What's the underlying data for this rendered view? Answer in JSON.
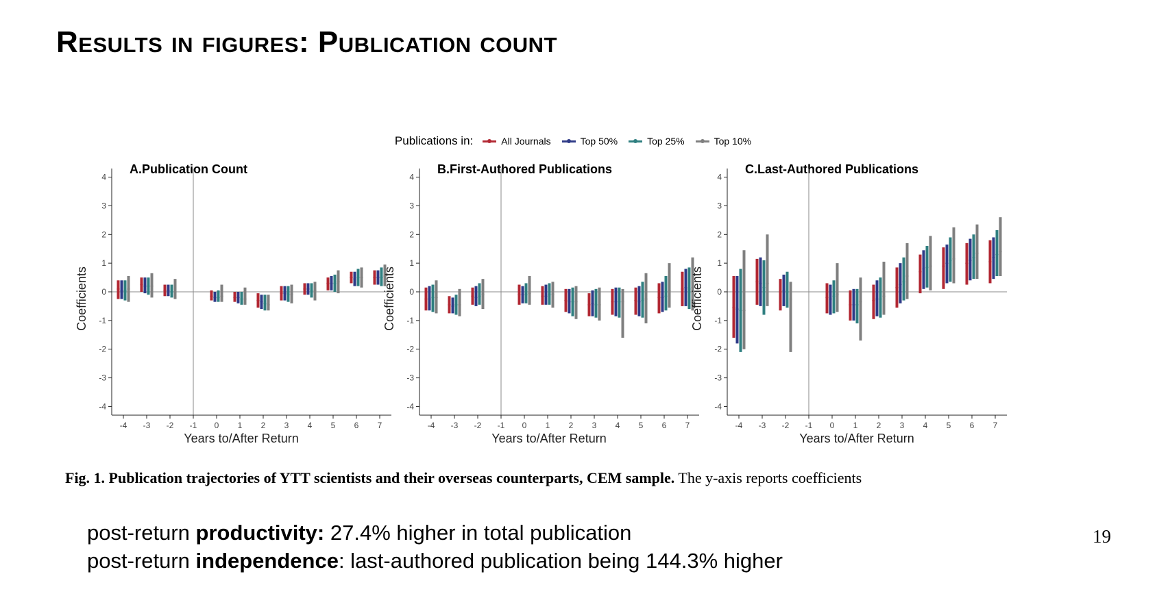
{
  "slide": {
    "title": "Results in figures: Publication count",
    "page_number": "19"
  },
  "legend": {
    "title": "Publications in:",
    "items": [
      {
        "label": "All Journals",
        "color": "#b22833"
      },
      {
        "label": "Top 50%",
        "color": "#2e3a87"
      },
      {
        "label": "Top 25%",
        "color": "#2f7f80"
      },
      {
        "label": "Top 10%",
        "color": "#7f7f7f"
      }
    ]
  },
  "chart_data": [
    {
      "type": "scatter",
      "style": "coefficient plot with confidence interval bars",
      "title": "A.Publication Count",
      "xlabel": "Years to/After Return",
      "ylabel": "Coefficients",
      "x": [
        -4,
        -3,
        -2,
        -1,
        0,
        1,
        2,
        3,
        4,
        5,
        6,
        7
      ],
      "xlim": [
        -4.5,
        7.5
      ],
      "ylim": [
        -4.3,
        4.3
      ],
      "yticks": [
        -4,
        -3,
        -2,
        -1,
        0,
        1,
        2,
        3,
        4
      ],
      "reference_lines": {
        "x": -1,
        "y": 0
      },
      "grid": false,
      "series": [
        {
          "name": "All Journals",
          "color": "#b22833",
          "points": [
            [
              -4,
              0.1,
              -0.25,
              0.4
            ],
            [
              -3,
              0.25,
              0.0,
              0.5
            ],
            [
              -2,
              0.05,
              -0.15,
              0.25
            ],
            [
              0,
              -0.15,
              -0.3,
              0.05
            ],
            [
              1,
              -0.2,
              -0.35,
              0.0
            ],
            [
              2,
              -0.3,
              -0.55,
              -0.05
            ],
            [
              3,
              -0.05,
              -0.3,
              0.2
            ],
            [
              4,
              0.1,
              -0.1,
              0.3
            ],
            [
              5,
              0.3,
              0.05,
              0.5
            ],
            [
              6,
              0.5,
              0.3,
              0.7
            ],
            [
              7,
              0.5,
              0.25,
              0.75
            ]
          ]
        },
        {
          "name": "Top 50%",
          "color": "#2e3a87",
          "points": [
            [
              -4,
              0.05,
              -0.25,
              0.4
            ],
            [
              -3,
              0.2,
              -0.05,
              0.5
            ],
            [
              -2,
              0.05,
              -0.15,
              0.25
            ],
            [
              0,
              -0.2,
              -0.35,
              0.0
            ],
            [
              1,
              -0.2,
              -0.4,
              0.0
            ],
            [
              2,
              -0.35,
              -0.6,
              -0.1
            ],
            [
              3,
              -0.05,
              -0.3,
              0.2
            ],
            [
              4,
              0.1,
              -0.1,
              0.3
            ],
            [
              5,
              0.3,
              0.05,
              0.55
            ],
            [
              6,
              0.45,
              0.2,
              0.7
            ],
            [
              7,
              0.5,
              0.25,
              0.75
            ]
          ]
        },
        {
          "name": "Top 25%",
          "color": "#2f7f80",
          "points": [
            [
              -4,
              0.05,
              -0.3,
              0.4
            ],
            [
              -3,
              0.2,
              -0.1,
              0.5
            ],
            [
              -2,
              0.0,
              -0.2,
              0.25
            ],
            [
              0,
              -0.2,
              -0.35,
              0.05
            ],
            [
              1,
              -0.25,
              -0.45,
              0.0
            ],
            [
              2,
              -0.4,
              -0.65,
              -0.1
            ],
            [
              3,
              -0.1,
              -0.35,
              0.2
            ],
            [
              4,
              0.05,
              -0.2,
              0.3
            ],
            [
              5,
              0.3,
              0.0,
              0.6
            ],
            [
              6,
              0.5,
              0.2,
              0.8
            ],
            [
              7,
              0.5,
              0.2,
              0.85
            ]
          ]
        },
        {
          "name": "Top 10%",
          "color": "#7f7f7f",
          "points": [
            [
              -4,
              0.1,
              -0.35,
              0.55
            ],
            [
              -3,
              0.2,
              -0.2,
              0.65
            ],
            [
              -2,
              0.0,
              -0.25,
              0.45
            ],
            [
              0,
              -0.15,
              -0.35,
              0.25
            ],
            [
              1,
              -0.25,
              -0.45,
              0.15
            ],
            [
              2,
              -0.45,
              -0.65,
              -0.1
            ],
            [
              3,
              -0.1,
              -0.4,
              0.25
            ],
            [
              4,
              0.05,
              -0.3,
              0.35
            ],
            [
              5,
              0.35,
              -0.05,
              0.75
            ],
            [
              6,
              0.5,
              0.15,
              0.85
            ],
            [
              7,
              0.55,
              0.2,
              0.95
            ]
          ]
        }
      ]
    },
    {
      "type": "scatter",
      "style": "coefficient plot with confidence interval bars",
      "title": "B.First-Authored Publications",
      "xlabel": "Years to/After Return",
      "ylabel": "Coefficients",
      "x": [
        -4,
        -3,
        -2,
        -1,
        0,
        1,
        2,
        3,
        4,
        5,
        6,
        7
      ],
      "xlim": [
        -4.5,
        7.5
      ],
      "ylim": [
        -4.3,
        4.3
      ],
      "yticks": [
        -4,
        -3,
        -2,
        -1,
        0,
        1,
        2,
        3,
        4
      ],
      "reference_lines": {
        "x": -1,
        "y": 0
      },
      "grid": false,
      "series": [
        {
          "name": "All Journals",
          "color": "#b22833",
          "points": [
            [
              -4,
              -0.25,
              -0.65,
              0.15
            ],
            [
              -3,
              -0.45,
              -0.75,
              -0.15
            ],
            [
              -2,
              -0.15,
              -0.45,
              0.15
            ],
            [
              0,
              -0.1,
              -0.45,
              0.25
            ],
            [
              1,
              -0.15,
              -0.45,
              0.2
            ],
            [
              2,
              -0.3,
              -0.7,
              0.1
            ],
            [
              3,
              -0.45,
              -0.85,
              -0.05
            ],
            [
              4,
              -0.35,
              -0.8,
              0.1
            ],
            [
              5,
              -0.3,
              -0.8,
              0.15
            ],
            [
              6,
              -0.2,
              -0.75,
              0.3
            ],
            [
              7,
              0.1,
              -0.5,
              0.7
            ]
          ]
        },
        {
          "name": "Top 50%",
          "color": "#2e3a87",
          "points": [
            [
              -4,
              -0.25,
              -0.65,
              0.2
            ],
            [
              -3,
              -0.5,
              -0.75,
              -0.2
            ],
            [
              -2,
              -0.2,
              -0.5,
              0.2
            ],
            [
              0,
              -0.1,
              -0.4,
              0.2
            ],
            [
              1,
              -0.15,
              -0.45,
              0.25
            ],
            [
              2,
              -0.35,
              -0.75,
              0.1
            ],
            [
              3,
              -0.4,
              -0.85,
              0.05
            ],
            [
              4,
              -0.35,
              -0.85,
              0.15
            ],
            [
              5,
              -0.35,
              -0.85,
              0.2
            ],
            [
              6,
              -0.2,
              -0.7,
              0.35
            ],
            [
              7,
              0.15,
              -0.5,
              0.8
            ]
          ]
        },
        {
          "name": "Top 25%",
          "color": "#2f7f80",
          "points": [
            [
              -4,
              -0.2,
              -0.7,
              0.25
            ],
            [
              -3,
              -0.45,
              -0.8,
              -0.1
            ],
            [
              -2,
              -0.15,
              -0.45,
              0.3
            ],
            [
              0,
              -0.1,
              -0.4,
              0.3
            ],
            [
              1,
              -0.1,
              -0.45,
              0.3
            ],
            [
              2,
              -0.35,
              -0.85,
              0.15
            ],
            [
              3,
              -0.45,
              -0.9,
              0.1
            ],
            [
              4,
              -0.35,
              -0.9,
              0.15
            ],
            [
              5,
              -0.3,
              -0.9,
              0.35
            ],
            [
              6,
              -0.15,
              -0.65,
              0.55
            ],
            [
              7,
              0.1,
              -0.6,
              0.85
            ]
          ]
        },
        {
          "name": "Top 10%",
          "color": "#7f7f7f",
          "points": [
            [
              -4,
              -0.2,
              -0.75,
              0.4
            ],
            [
              -3,
              -0.45,
              -0.85,
              0.1
            ],
            [
              -2,
              -0.1,
              -0.6,
              0.45
            ],
            [
              0,
              -0.05,
              -0.45,
              0.55
            ],
            [
              1,
              -0.1,
              -0.55,
              0.35
            ],
            [
              2,
              -0.35,
              -0.95,
              0.2
            ],
            [
              3,
              -0.45,
              -1.0,
              0.15
            ],
            [
              4,
              -0.35,
              -1.6,
              0.1
            ],
            [
              5,
              -0.25,
              -1.1,
              0.65
            ],
            [
              6,
              0.05,
              -0.55,
              1.0
            ],
            [
              7,
              0.15,
              -0.65,
              1.2
            ]
          ]
        }
      ]
    },
    {
      "type": "scatter",
      "style": "coefficient plot with confidence interval bars",
      "title": "C.Last-Authored Publications",
      "xlabel": "Years to/After Return",
      "ylabel": "Coefficients",
      "x": [
        -4,
        -3,
        -2,
        -1,
        0,
        1,
        2,
        3,
        4,
        5,
        6,
        7
      ],
      "xlim": [
        -4.5,
        7.5
      ],
      "ylim": [
        -4.3,
        4.3
      ],
      "yticks": [
        -4,
        -3,
        -2,
        -1,
        0,
        1,
        2,
        3,
        4
      ],
      "reference_lines": {
        "x": -1,
        "y": 0
      },
      "grid": false,
      "series": [
        {
          "name": "All Journals",
          "color": "#b22833",
          "points": [
            [
              -4,
              -0.55,
              -1.6,
              0.55
            ],
            [
              -3,
              0.35,
              -0.45,
              1.15
            ],
            [
              -2,
              0.0,
              -0.65,
              0.45
            ],
            [
              0,
              -0.2,
              -0.75,
              0.3
            ],
            [
              1,
              -0.45,
              -1.0,
              0.05
            ],
            [
              2,
              -0.3,
              -0.95,
              0.25
            ],
            [
              3,
              0.15,
              -0.55,
              0.85
            ],
            [
              4,
              0.7,
              -0.05,
              1.3
            ],
            [
              5,
              0.9,
              0.1,
              1.55
            ],
            [
              6,
              1.0,
              0.25,
              1.7
            ],
            [
              7,
              1.05,
              0.3,
              1.8
            ]
          ]
        },
        {
          "name": "Top 50%",
          "color": "#2e3a87",
          "points": [
            [
              -4,
              -0.6,
              -1.8,
              0.55
            ],
            [
              -3,
              0.3,
              -0.5,
              1.2
            ],
            [
              -2,
              0.05,
              -0.5,
              0.6
            ],
            [
              0,
              -0.25,
              -0.8,
              0.25
            ],
            [
              1,
              -0.45,
              -1.0,
              0.1
            ],
            [
              2,
              -0.25,
              -0.85,
              0.4
            ],
            [
              3,
              0.25,
              -0.4,
              1.0
            ],
            [
              4,
              0.8,
              0.1,
              1.45
            ],
            [
              5,
              1.0,
              0.3,
              1.65
            ],
            [
              6,
              1.1,
              0.4,
              1.85
            ],
            [
              7,
              1.2,
              0.45,
              1.9
            ]
          ]
        },
        {
          "name": "Top 25%",
          "color": "#2f7f80",
          "points": [
            [
              -4,
              -0.65,
              -2.1,
              0.8
            ],
            [
              -3,
              0.15,
              -0.8,
              1.1
            ],
            [
              -2,
              0.0,
              -0.55,
              0.7
            ],
            [
              0,
              -0.15,
              -0.75,
              0.4
            ],
            [
              1,
              -0.45,
              -1.1,
              0.1
            ],
            [
              2,
              -0.25,
              -0.9,
              0.5
            ],
            [
              3,
              0.35,
              -0.3,
              1.2
            ],
            [
              4,
              0.85,
              0.15,
              1.6
            ],
            [
              5,
              1.1,
              0.35,
              1.9
            ],
            [
              6,
              1.2,
              0.45,
              2.0
            ],
            [
              7,
              1.3,
              0.55,
              2.15
            ]
          ]
        },
        {
          "name": "Top 10%",
          "color": "#7f7f7f",
          "points": [
            [
              -4,
              -0.65,
              -2.0,
              1.45
            ],
            [
              -3,
              0.3,
              -0.5,
              2.0
            ],
            [
              -2,
              -0.25,
              -2.1,
              0.35
            ],
            [
              0,
              -0.1,
              -0.7,
              1.0
            ],
            [
              1,
              -0.35,
              -1.7,
              0.5
            ],
            [
              2,
              -0.15,
              -0.8,
              1.05
            ],
            [
              3,
              0.55,
              -0.25,
              1.7
            ],
            [
              4,
              0.9,
              0.05,
              1.95
            ],
            [
              5,
              1.15,
              0.3,
              2.25
            ],
            [
              6,
              1.35,
              0.45,
              2.35
            ],
            [
              7,
              1.4,
              0.55,
              2.6
            ]
          ]
        }
      ]
    }
  ],
  "caption": {
    "bold": "Fig. 1. Publication trajectories of YTT scientists and their overseas counterparts, CEM sample.",
    "rest": " The y-axis reports coefficients"
  },
  "summary": [
    {
      "pre": "post-return ",
      "bold": "productivity:",
      "post": " 27.4% higher in total publication"
    },
    {
      "pre": "post-return ",
      "bold": "independence",
      "post": ": last-authored publication being 144.3% higher"
    }
  ]
}
